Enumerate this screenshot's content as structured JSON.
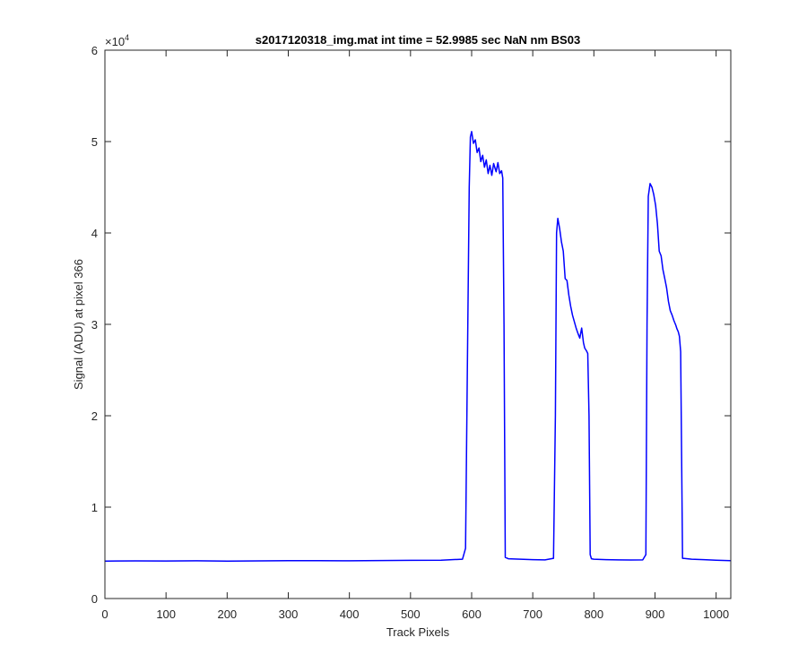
{
  "chart_data": {
    "type": "line",
    "title": "s2017120318_img.mat int time = 52.9985 sec  NaN nm BS03",
    "xlabel": "Track Pixels",
    "ylabel": "Signal (ADU) at pixel 366",
    "xlim": [
      0,
      1024
    ],
    "ylim": [
      0,
      60000
    ],
    "x_ticks": [
      0,
      100,
      200,
      300,
      400,
      500,
      600,
      700,
      800,
      900,
      1000
    ],
    "y_tick_values": [
      0,
      10000,
      20000,
      30000,
      40000,
      50000,
      60000
    ],
    "y_tick_labels": [
      "0",
      "1",
      "2",
      "3",
      "4",
      "5",
      "6"
    ],
    "y_exponent_label": "×10",
    "y_exponent_power": "4",
    "grid": false,
    "line_color": "#0000ff",
    "series": [
      {
        "x": [
          0,
          50,
          100,
          150,
          200,
          250,
          300,
          350,
          400,
          450,
          500,
          550,
          585,
          590,
          593,
          596,
          598,
          600,
          603,
          606,
          609,
          612,
          615,
          618,
          621,
          624,
          627,
          630,
          633,
          636,
          640,
          643,
          646,
          649,
          651,
          653,
          655,
          660,
          680,
          700,
          720,
          734,
          737,
          739,
          741,
          744,
          747,
          750,
          753,
          756,
          759,
          762,
          765,
          768,
          771,
          774,
          777,
          780,
          783,
          785,
          788,
          790,
          792,
          794,
          796,
          800,
          820,
          840,
          860,
          880,
          885,
          887,
          889,
          892,
          895,
          898,
          901,
          904,
          907,
          910,
          913,
          916,
          919,
          922,
          925,
          928,
          931,
          934,
          936,
          938,
          940,
          942,
          945,
          960,
          980,
          1000,
          1024
        ],
        "y": [
          4100,
          4120,
          4110,
          4130,
          4100,
          4120,
          4140,
          4150,
          4130,
          4160,
          4180,
          4200,
          4300,
          5500,
          25000,
          45000,
          50500,
          51100,
          49800,
          50200,
          48800,
          49300,
          47800,
          48500,
          47200,
          48000,
          46500,
          47400,
          46300,
          47600,
          46700,
          47700,
          46500,
          46800,
          46000,
          30000,
          4500,
          4350,
          4300,
          4250,
          4230,
          4400,
          20000,
          40000,
          41600,
          40500,
          39000,
          38000,
          35000,
          34800,
          33200,
          32000,
          31000,
          30300,
          29600,
          29000,
          28500,
          29600,
          28000,
          27400,
          27100,
          26800,
          20000,
          4800,
          4350,
          4300,
          4250,
          4230,
          4220,
          4230,
          4800,
          30000,
          44000,
          45400,
          45000,
          44200,
          43000,
          41000,
          38000,
          37500,
          36000,
          35000,
          34000,
          32500,
          31500,
          31000,
          30400,
          29900,
          29500,
          29200,
          28700,
          27000,
          4400,
          4300,
          4250,
          4200,
          4150
        ]
      }
    ]
  }
}
